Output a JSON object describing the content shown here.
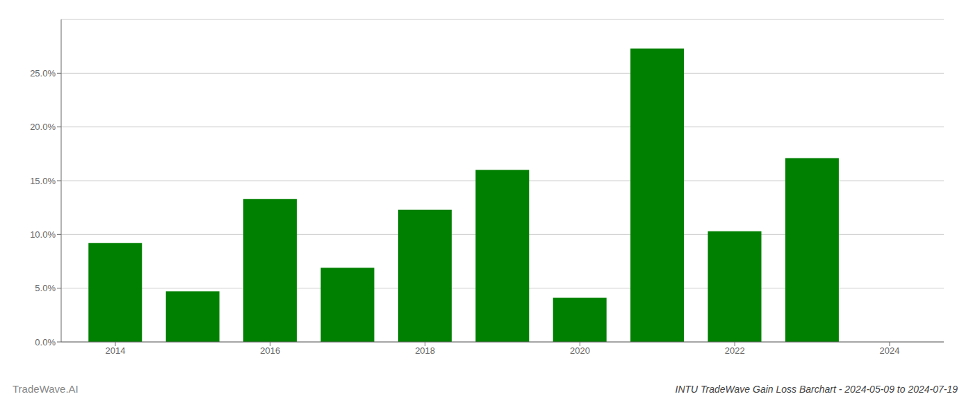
{
  "chart_data": {
    "type": "bar",
    "title": "INTU TradeWave Gain Loss Barchart - 2024-05-09 to 2024-07-19",
    "annotations": [
      "TradeWave.AI"
    ],
    "x": [
      2014,
      2015,
      2016,
      2017,
      2018,
      2019,
      2020,
      2021,
      2022,
      2023,
      2024
    ],
    "values": [
      0.092,
      0.047,
      0.133,
      0.069,
      0.123,
      0.16,
      0.041,
      0.273,
      0.103,
      0.171,
      null
    ],
    "color": "#008000",
    "xlim": [
      2013.3,
      2024.7
    ],
    "xticks": [
      2014,
      2016,
      2018,
      2020,
      2022,
      2024
    ],
    "ylim": [
      0,
      0.3
    ],
    "yticks": [
      {
        "value": 0.0,
        "label": "0.0%"
      },
      {
        "value": 0.05,
        "label": "5.0%"
      },
      {
        "value": 0.1,
        "label": "10.0%"
      },
      {
        "value": 0.15,
        "label": "15.0%"
      },
      {
        "value": 0.2,
        "label": "20.0%"
      },
      {
        "value": 0.25,
        "label": "25.0%"
      }
    ],
    "grid": true
  }
}
